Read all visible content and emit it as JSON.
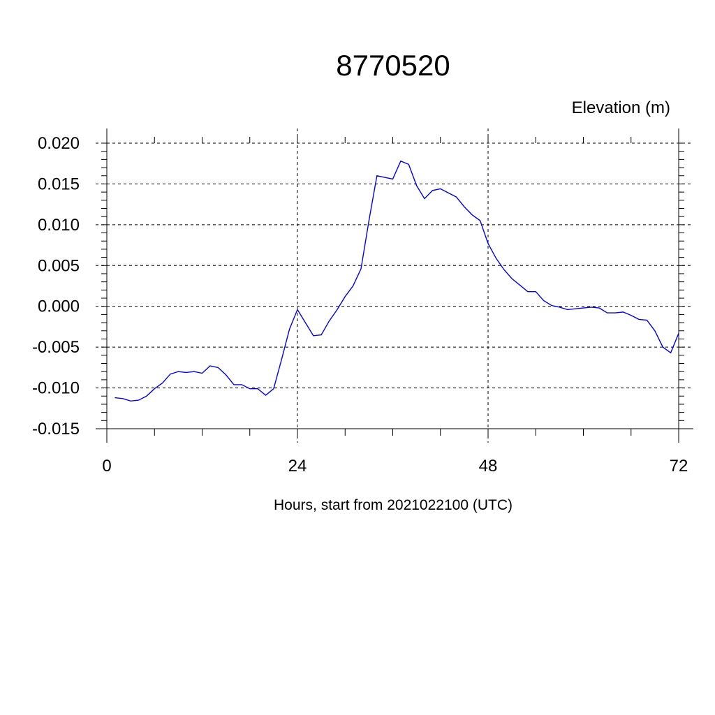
{
  "chart_data": {
    "type": "line",
    "title": "8770520",
    "ylabel": "Elevation (m)",
    "xlabel": "Hours, start from 2021022100 (UTC)",
    "xlim": [
      0,
      72
    ],
    "ylim": [
      -0.015,
      0.02
    ],
    "x_ticks": [
      "0",
      "24",
      "48",
      "72"
    ],
    "y_ticks": [
      "0.020",
      "0.015",
      "0.010",
      "0.005",
      "0.000",
      "-0.005",
      "-0.010",
      "-0.015"
    ],
    "grid": true,
    "series": [
      {
        "color": "#0000ff",
        "x": [
          1,
          2,
          3,
          4,
          5,
          6,
          7,
          8,
          9,
          10,
          11,
          12,
          13,
          14,
          15,
          16,
          17,
          18,
          19,
          20,
          21,
          22,
          23,
          24,
          25,
          26,
          27,
          28,
          29,
          30,
          31,
          32,
          33,
          34,
          35,
          36,
          37,
          38,
          39,
          40,
          41,
          42,
          43,
          44,
          45,
          46,
          47,
          48,
          49,
          50,
          51,
          52,
          53,
          54,
          55,
          56,
          57,
          58,
          59,
          60,
          61,
          62,
          63,
          64,
          65,
          66,
          67,
          68,
          69,
          70,
          71,
          72
        ],
        "y": [
          -0.0112,
          -0.0113,
          -0.0116,
          -0.0115,
          -0.011,
          -0.0101,
          -0.0094,
          -0.0083,
          -0.008,
          -0.0081,
          -0.008,
          -0.0082,
          -0.0073,
          -0.0075,
          -0.0084,
          -0.0096,
          -0.0096,
          -0.0101,
          -0.0101,
          -0.0109,
          -0.0101,
          -0.0065,
          -0.0028,
          -0.0004,
          -0.002,
          -0.0036,
          -0.0035,
          -0.0018,
          -0.0004,
          0.0012,
          0.0025,
          0.0046,
          0.0105,
          0.016,
          0.0158,
          0.0156,
          0.0178,
          0.0174,
          0.0148,
          0.0132,
          0.0142,
          0.0144,
          0.0139,
          0.0134,
          0.0122,
          0.0112,
          0.0105,
          0.0077,
          0.0059,
          0.0045,
          0.0034,
          0.0026,
          0.0018,
          0.0018,
          0.0007,
          0.0001,
          -0.0001,
          -0.0004,
          -0.0003,
          -0.0002,
          -0.0001,
          -0.0002,
          -0.0008,
          -0.0008,
          -0.0007,
          -0.0011,
          -0.0016,
          -0.0017,
          -0.003,
          -0.005,
          -0.0057,
          -0.0033
        ]
      }
    ]
  }
}
